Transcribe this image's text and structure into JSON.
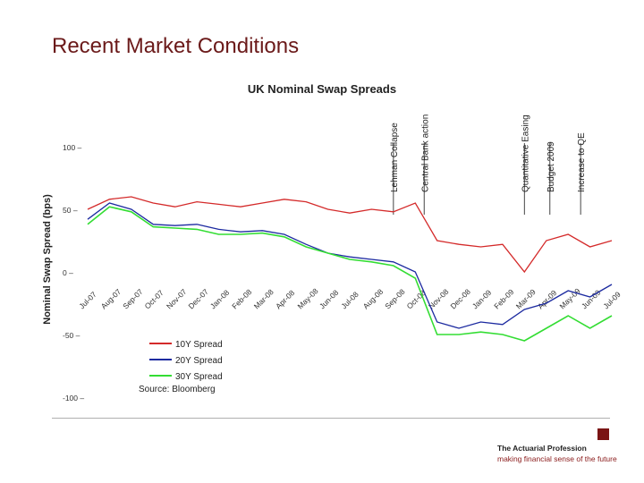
{
  "slide": {
    "title": "Recent Market Conditions"
  },
  "footer": {
    "org_name": "The Actuarial Profession",
    "tagline": "making financial sense of the future"
  },
  "colors": {
    "title": "#6b1a1a",
    "series_10y": "#d42a2a",
    "series_20y": "#1c2aa0",
    "series_30y": "#33dd33",
    "logo": "#7a1414"
  },
  "chart_data": {
    "type": "line",
    "title": "UK Nominal Swap Spreads",
    "ylabel": "Nominal Swap Spread (bps)",
    "xlabel": "",
    "ylim": [
      -100,
      100
    ],
    "yticks": [
      100,
      50,
      0,
      -50,
      -100
    ],
    "grid": false,
    "legend_position": "bottom-left",
    "source": "Source: Bloomberg",
    "x": [
      "Jul-07",
      "Aug-07",
      "Sep-07",
      "Oct-07",
      "Nov-07",
      "Dec-07",
      "Jan-08",
      "Feb-08",
      "Mar-08",
      "Apr-08",
      "May-08",
      "Jun-08",
      "Jul-08",
      "Aug-08",
      "Sep-08",
      "Oct-08",
      "Nov-08",
      "Dec-08",
      "Jan-09",
      "Feb-09",
      "Mar-09",
      "Apr-09",
      "May-09",
      "Jun-09",
      "Jul-09"
    ],
    "series": [
      {
        "name": "10Y Spread",
        "color": "#d42a2a",
        "values": [
          50,
          58,
          60,
          55,
          52,
          56,
          54,
          52,
          55,
          58,
          56,
          50,
          47,
          50,
          48,
          55,
          25,
          22,
          20,
          22,
          0,
          25,
          30,
          20,
          25
        ]
      },
      {
        "name": "20Y Spread",
        "color": "#1c2aa0",
        "values": [
          42,
          55,
          50,
          38,
          37,
          38,
          34,
          32,
          33,
          30,
          22,
          15,
          12,
          10,
          8,
          0,
          -40,
          -45,
          -40,
          -42,
          -30,
          -25,
          -15,
          -20,
          -10
        ]
      },
      {
        "name": "30Y Spread",
        "color": "#33dd33",
        "values": [
          38,
          52,
          48,
          36,
          35,
          34,
          30,
          30,
          31,
          28,
          20,
          15,
          10,
          8,
          5,
          -5,
          -50,
          -50,
          -48,
          -50,
          -55,
          -45,
          -35,
          -45,
          -35
        ]
      }
    ],
    "annotations": [
      {
        "label": "Lehman Collapse",
        "x": "Sep-08"
      },
      {
        "label": "Central Bank action",
        "x": "Oct-08"
      },
      {
        "label": "Quantitative Easing",
        "x": "Mar-09"
      },
      {
        "label": "Budget 2009",
        "x": "Apr-09"
      },
      {
        "label": "Increase to QE",
        "x": "May-09"
      }
    ]
  }
}
